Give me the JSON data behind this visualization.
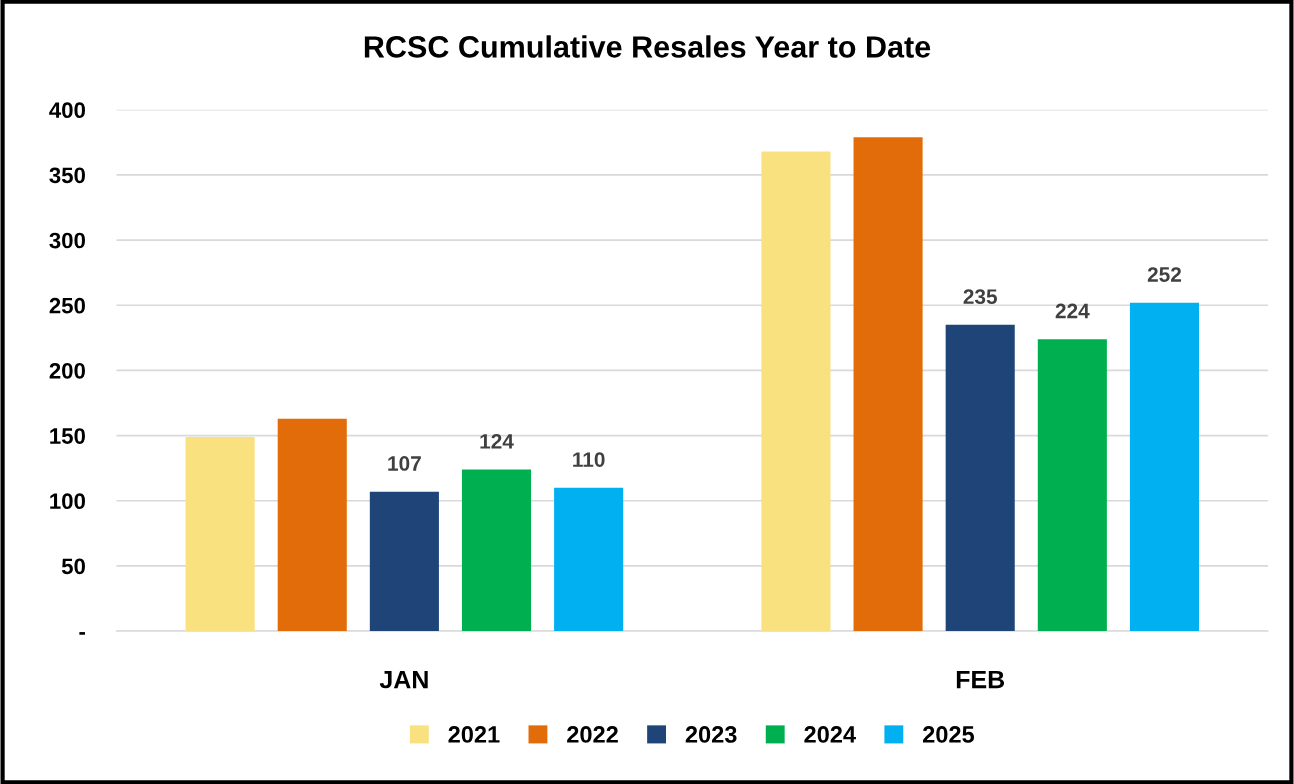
{
  "chart_data": {
    "type": "bar",
    "title": "RCSC Cumulative Resales Year to Date",
    "categories": [
      "JAN",
      "FEB"
    ],
    "series": [
      {
        "name": "2021",
        "color": "#fae17f",
        "values": [
          149,
          368
        ]
      },
      {
        "name": "2022",
        "color": "#e36c0a",
        "values": [
          163,
          379
        ]
      },
      {
        "name": "2023",
        "color": "#1f4578",
        "values": [
          107,
          235
        ],
        "value_labels": [
          "107",
          "235"
        ]
      },
      {
        "name": "2024",
        "color": "#00b050",
        "values": [
          124,
          224
        ],
        "value_labels": [
          "124",
          "224"
        ]
      },
      {
        "name": "2025",
        "color": "#00b0f0",
        "values": [
          110,
          252
        ],
        "value_labels": [
          "110",
          "252"
        ]
      }
    ],
    "ylim": [
      0,
      400
    ],
    "yticks": [
      {
        "value": 0,
        "label": "-"
      },
      50,
      100,
      150,
      200,
      250,
      300,
      350,
      400
    ],
    "grid": "y",
    "legend": "bottom"
  }
}
